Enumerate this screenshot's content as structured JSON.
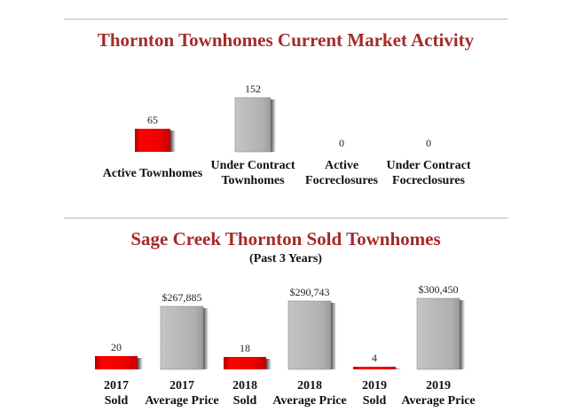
{
  "section1": {
    "title": "Thornton Townhomes Current Market Activity",
    "chart_data": {
      "type": "bar",
      "title": "Thornton Townhomes Current Market Activity",
      "categories": [
        [
          "Active Townhomes"
        ],
        [
          "Under Contract",
          "Townhomes"
        ],
        [
          "Active",
          "Focreclosures"
        ],
        [
          "Under Contract",
          "Focreclosures"
        ]
      ],
      "values": [
        65,
        152,
        0,
        0
      ],
      "value_labels": [
        "65",
        "152",
        "0",
        "0"
      ],
      "bar_styles": [
        "red",
        "gray",
        "gray",
        "gray"
      ],
      "ylim": [
        0,
        152
      ]
    }
  },
  "section2": {
    "title": "Sage Creek Thornton Sold Townhomes",
    "subtitle": "(Past 3 Years)",
    "chart_data": {
      "type": "bar",
      "title": "Sage Creek Thornton Sold Townhomes",
      "categories": [
        [
          "2017",
          "Sold"
        ],
        [
          "2017",
          "Average Price"
        ],
        [
          "2018",
          "Sold"
        ],
        [
          "2018",
          "Average Price"
        ],
        [
          "2019",
          "Sold"
        ],
        [
          "2019",
          "Average Price"
        ]
      ],
      "values": [
        20,
        267885,
        18,
        290743,
        4,
        300450
      ],
      "value_labels": [
        "20",
        "$267,885",
        "18",
        "$290,743",
        "4",
        "$300,450"
      ],
      "bar_styles": [
        "red",
        "gray",
        "red",
        "gray",
        "red",
        "gray"
      ]
    }
  },
  "colors": {
    "title": "#a52a2a",
    "red_bar": "#ee0000",
    "gray_bar": "#b3b3b3",
    "rule": "#b5b5b5"
  }
}
